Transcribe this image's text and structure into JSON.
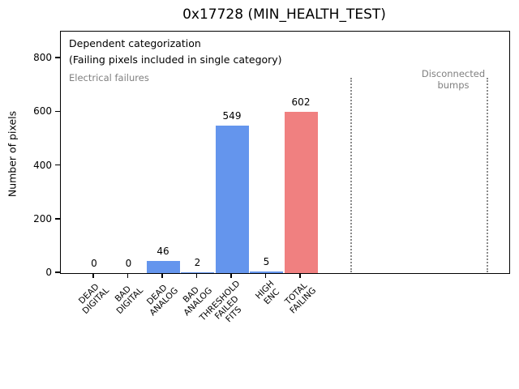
{
  "title": "0x17728 (MIN_HEALTH_TEST)",
  "chart_data": {
    "type": "bar",
    "title": "0x17728 (MIN_HEALTH_TEST)",
    "categories": [
      "DEAD DIGITAL",
      "BAD DIGITAL",
      "DEAD ANALOG",
      "BAD ANALOG",
      "THRESHOLD FAILED FITS",
      "HIGH ENC",
      "TOTAL FAILING"
    ],
    "category_display": [
      [
        "DEAD",
        "DIGITAL"
      ],
      [
        "BAD",
        "DIGITAL"
      ],
      [
        "DEAD",
        "ANALOG"
      ],
      [
        "BAD",
        "ANALOG"
      ],
      [
        "THRESHOLD",
        "FAILED",
        "FITS"
      ],
      [
        "HIGH",
        "ENC"
      ],
      [
        "TOTAL",
        "FAILING"
      ]
    ],
    "values": [
      0,
      0,
      46,
      2,
      549,
      5,
      602
    ],
    "value_labels": [
      "0",
      "0",
      "46",
      "2",
      "549",
      "5",
      "602"
    ],
    "bar_colors": [
      "#6495ed",
      "#6495ed",
      "#6495ed",
      "#6495ed",
      "#6495ed",
      "#6495ed",
      "#f08080"
    ],
    "xlabel": "",
    "ylabel": "Number of pixels",
    "ylim": [
      0,
      900
    ],
    "xlim": [
      -1,
      12.05
    ],
    "yticks": [
      0,
      200,
      400,
      600,
      800
    ],
    "ytick_labels": [
      "0",
      "200",
      "400",
      "600",
      "800"
    ],
    "grid": false,
    "legend": null,
    "guide_lines": {
      "style": "dotted",
      "color": "#8a8a8a",
      "x_positions_category_units": [
        7.46,
        11.41
      ]
    },
    "annotations": {
      "dependent_line1": "Dependent categorization",
      "dependent_line2": "(Failing pixels included in single category)",
      "electrical_label": "Electrical failures",
      "disconnected_lines": [
        "Disconnected",
        "bumps"
      ]
    },
    "colors": {
      "bar_blue": "#6495ed",
      "bar_red": "#f08080",
      "annotation_gray": "#808080",
      "guide_gray": "#8a8a8a",
      "axes": "#000000",
      "background": "#ffffff"
    }
  }
}
